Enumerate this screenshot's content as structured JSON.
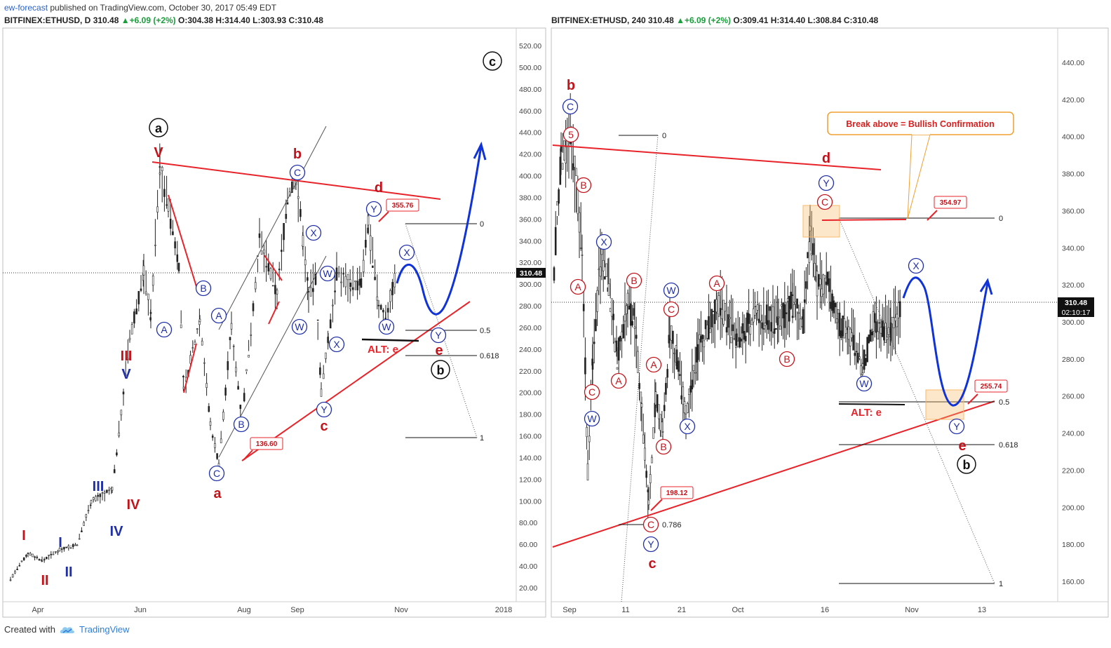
{
  "header": {
    "author": "ew-forecast",
    "published_text": "published on TradingView.com, October 30, 2017 05:49 EDT"
  },
  "footer": {
    "created_with": "Created with",
    "brand": "TradingView",
    "logo_icon": "tradingview-cloud-icon"
  },
  "colors": {
    "wave_red": "#c4121a",
    "wave_blue": "#1f2fa8",
    "trendline_red": "#e8232a",
    "projection_blue": "#1033d9",
    "fib_black": "#111111",
    "box_orange": "#f7b96b"
  },
  "chart_data": [
    {
      "type": "candlestick",
      "symbol": "BITFINEX:ETHUSD",
      "timeframe": "D",
      "legend": {
        "symbol": "BITFINEX:ETHUSD, D",
        "price": "310.48",
        "change": "+6.09 (+2%)",
        "open": "O:304.38",
        "high": "H:314.40",
        "low": "L:303.93",
        "close": "C:310.48"
      },
      "last_price_label": "310.48",
      "ylim": [
        10,
        530
      ],
      "y_ticks": [
        "20.00",
        "40.00",
        "60.00",
        "80.00",
        "100.00",
        "120.00",
        "140.00",
        "160.00",
        "180.00",
        "200.00",
        "220.00",
        "240.00",
        "260.00",
        "280.00",
        "300.00",
        "320.00",
        "340.00",
        "360.00",
        "380.00",
        "400.00",
        "420.00",
        "440.00",
        "460.00",
        "480.00",
        "500.00",
        "520.00"
      ],
      "x_ticks": [
        "Apr",
        "Jun",
        "Aug",
        "Sep",
        "Nov",
        "2018"
      ],
      "price_path": [
        [
          15,
          28
        ],
        [
          40,
          52
        ],
        [
          60,
          45
        ],
        [
          85,
          55
        ],
        [
          110,
          60
        ],
        [
          130,
          100
        ],
        [
          160,
          110
        ],
        [
          185,
          250
        ],
        [
          205,
          310
        ],
        [
          215,
          270
        ],
        [
          228,
          410
        ],
        [
          240,
          370
        ],
        [
          255,
          320
        ],
        [
          262,
          200
        ],
        [
          285,
          270
        ],
        [
          300,
          170
        ],
        [
          312,
          135
        ],
        [
          330,
          260
        ],
        [
          345,
          175
        ],
        [
          370,
          340
        ],
        [
          395,
          290
        ],
        [
          410,
          380
        ],
        [
          422,
          400
        ],
        [
          432,
          340
        ],
        [
          440,
          290
        ],
        [
          450,
          305
        ],
        [
          458,
          200
        ],
        [
          468,
          250
        ],
        [
          480,
          310
        ],
        [
          500,
          300
        ],
        [
          515,
          300
        ],
        [
          525,
          355
        ],
        [
          540,
          280
        ],
        [
          550,
          270
        ],
        [
          565,
          310
        ]
      ],
      "wave_labels": [
        {
          "text": "I",
          "color": "red"
        },
        {
          "text": "II",
          "color": "red"
        },
        {
          "text": "I",
          "color": "blue"
        },
        {
          "text": "II",
          "color": "blue"
        },
        {
          "text": "III",
          "color": "blue"
        },
        {
          "text": "IV",
          "color": "blue"
        },
        {
          "text": "V",
          "color": "blue"
        },
        {
          "text": "III",
          "color": "red"
        },
        {
          "text": "IV",
          "color": "red"
        },
        {
          "text": "V",
          "color": "red"
        },
        {
          "text": "a",
          "color": "black_circle"
        },
        {
          "text": "a",
          "color": "red"
        },
        {
          "text": "b",
          "color": "red"
        },
        {
          "text": "c",
          "color": "red"
        },
        {
          "text": "d",
          "color": "red"
        },
        {
          "text": "e",
          "color": "red"
        },
        {
          "text": "b",
          "color": "black_circle"
        },
        {
          "text": "c",
          "color": "black_circle"
        },
        {
          "text": "ALT: e",
          "color": "red"
        }
      ],
      "circled_labels": [
        "A",
        "B",
        "C",
        "A",
        "B",
        "C",
        "W",
        "X",
        "Y",
        "W",
        "X",
        "Y",
        "X",
        "Y"
      ],
      "price_callouts": [
        "355.76",
        "136.60"
      ],
      "fib_levels": [
        {
          "label": "0",
          "price": 355
        },
        {
          "label": "0.5",
          "price": 257
        },
        {
          "label": "0.618",
          "price": 234
        },
        {
          "label": "1",
          "price": 158
        }
      ]
    },
    {
      "type": "candlestick",
      "symbol": "BITFINEX:ETHUSD",
      "timeframe": "240",
      "legend": {
        "symbol": "BITFINEX:ETHUSD, 240",
        "price": "310.48",
        "change": "+6.09 (+2%)",
        "open": "O:309.41",
        "high": "H:314.40",
        "low": "L:308.84",
        "close": "C:310.48"
      },
      "last_price_label": "310.48",
      "countdown_label": "02:10:17",
      "ylim": [
        152,
        457
      ],
      "y_ticks": [
        "160.00",
        "180.00",
        "200.00",
        "220.00",
        "240.00",
        "260.00",
        "280.00",
        "300.00",
        "320.00",
        "340.00",
        "360.00",
        "380.00",
        "400.00",
        "420.00",
        "440.00"
      ],
      "x_ticks": [
        "Sep",
        "11",
        "21",
        "Oct",
        "16",
        "Nov",
        "13"
      ],
      "price_path": [
        [
          790,
          330
        ],
        [
          800,
          390
        ],
        [
          815,
          400
        ],
        [
          830,
          340
        ],
        [
          838,
          220
        ],
        [
          845,
          280
        ],
        [
          858,
          340
        ],
        [
          868,
          320
        ],
        [
          880,
          280
        ],
        [
          895,
          310
        ],
        [
          905,
          300
        ],
        [
          915,
          250
        ],
        [
          925,
          200
        ],
        [
          935,
          260
        ],
        [
          945,
          240
        ],
        [
          955,
          295
        ],
        [
          965,
          280
        ],
        [
          978,
          250
        ],
        [
          995,
          285
        ],
        [
          1025,
          310
        ],
        [
          1050,
          290
        ],
        [
          1080,
          305
        ],
        [
          1110,
          300
        ],
        [
          1130,
          310
        ],
        [
          1145,
          300
        ],
        [
          1155,
          345
        ],
        [
          1165,
          320
        ],
        [
          1180,
          320
        ],
        [
          1195,
          300
        ],
        [
          1210,
          295
        ],
        [
          1230,
          275
        ],
        [
          1245,
          298
        ],
        [
          1270,
          295
        ],
        [
          1285,
          310
        ]
      ],
      "wave_labels": [
        {
          "text": "b",
          "color": "red"
        },
        {
          "text": "c",
          "color": "red"
        },
        {
          "text": "d",
          "color": "red"
        },
        {
          "text": "e",
          "color": "red"
        },
        {
          "text": "b",
          "color": "black_circle"
        },
        {
          "text": "ALT: e",
          "color": "red"
        }
      ],
      "circled_labels": [
        "C",
        "5",
        "B",
        "A",
        "C",
        "W",
        "X",
        "B",
        "A",
        "C",
        "W",
        "A",
        "B",
        "C",
        "X",
        "Y",
        "A",
        "B",
        "C",
        "Y",
        "W",
        "X",
        "Y"
      ],
      "price_callouts": [
        "354.97",
        "255.74",
        "198.12"
      ],
      "annotation": "Break above = Bullish Confirmation",
      "fib_levels": [
        {
          "label": "0",
          "price": 396
        },
        {
          "label": "0.786",
          "price": 190
        },
        {
          "label": "0",
          "price": 356
        },
        {
          "label": "0.5",
          "price": 258
        },
        {
          "label": "0.618",
          "price": 234
        },
        {
          "label": "1",
          "price": 158
        }
      ]
    }
  ]
}
